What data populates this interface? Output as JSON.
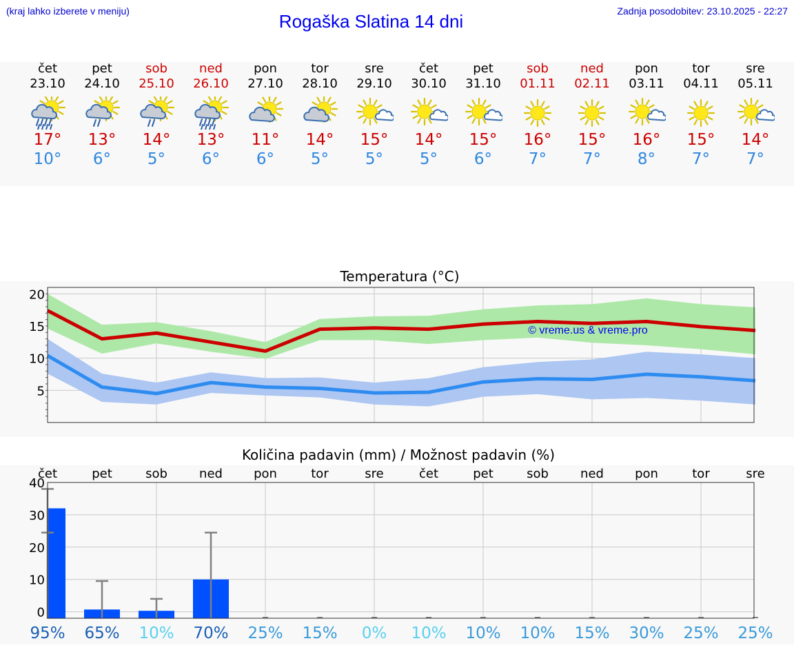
{
  "header": {
    "hint": "(kraj lahko izberete v meniju)",
    "title": "Rogaška Slatina 14 dni",
    "updated": "Zadnja posodobitev: 23.10.2025 - 22:27"
  },
  "colors": {
    "link": "#0000cc",
    "max_temp": "#cc0000",
    "min_temp": "#2e86e0",
    "max_band": "#aee8a8",
    "min_band": "#adc6f2",
    "bar": "#0050ff",
    "errbar": "#808080"
  },
  "forecast": [
    {
      "day": "čet",
      "date": "23.10",
      "weekend": false,
      "icon": "sun-cloud-rain-icon",
      "max": "17°",
      "min": "10°"
    },
    {
      "day": "pet",
      "date": "24.10",
      "weekend": false,
      "icon": "sun-cloud-light-rain-icon",
      "max": "13°",
      "min": "6°"
    },
    {
      "day": "sob",
      "date": "25.10",
      "weekend": true,
      "icon": "sun-cloud-light-rain-icon",
      "max": "14°",
      "min": "5°"
    },
    {
      "day": "ned",
      "date": "26.10",
      "weekend": true,
      "icon": "sun-cloud-rain-icon",
      "max": "13°",
      "min": "6°"
    },
    {
      "day": "pon",
      "date": "27.10",
      "weekend": false,
      "icon": "sun-cloud-icon",
      "max": "11°",
      "min": "6°"
    },
    {
      "day": "tor",
      "date": "28.10",
      "weekend": false,
      "icon": "sun-cloud-icon",
      "max": "14°",
      "min": "5°"
    },
    {
      "day": "sre",
      "date": "29.10",
      "weekend": false,
      "icon": "sun-small-cloud-icon",
      "max": "15°",
      "min": "5°"
    },
    {
      "day": "čet",
      "date": "30.10",
      "weekend": false,
      "icon": "sun-small-cloud-icon",
      "max": "14°",
      "min": "5°"
    },
    {
      "day": "pet",
      "date": "31.10",
      "weekend": false,
      "icon": "sun-small-cloud-icon",
      "max": "15°",
      "min": "6°"
    },
    {
      "day": "sob",
      "date": "01.11",
      "weekend": true,
      "icon": "sun-icon",
      "max": "16°",
      "min": "7°"
    },
    {
      "day": "ned",
      "date": "02.11",
      "weekend": true,
      "icon": "sun-icon",
      "max": "15°",
      "min": "7°"
    },
    {
      "day": "pon",
      "date": "03.11",
      "weekend": false,
      "icon": "sun-small-cloud-icon",
      "max": "16°",
      "min": "8°"
    },
    {
      "day": "tor",
      "date": "04.11",
      "weekend": false,
      "icon": "sun-icon",
      "max": "15°",
      "min": "7°"
    },
    {
      "day": "sre",
      "date": "05.11",
      "weekend": false,
      "icon": "sun-small-cloud-icon",
      "max": "14°",
      "min": "7°"
    }
  ],
  "chart_data": [
    {
      "type": "line",
      "title": "Temperatura (°C)",
      "xlabel": "",
      "ylabel": "",
      "ylim": [
        0,
        21
      ],
      "yticks": [
        5,
        10,
        15,
        20
      ],
      "grid": true,
      "watermark": "© vreme.us & vreme.pro",
      "x": [
        "23.10",
        "24.10",
        "25.10",
        "26.10",
        "27.10",
        "28.10",
        "29.10",
        "30.10",
        "31.10",
        "01.11",
        "02.11",
        "03.11",
        "04.11",
        "05.11"
      ],
      "series": [
        {
          "role": "max",
          "values": [
            17.4,
            13.0,
            13.9,
            12.5,
            11.1,
            14.5,
            14.7,
            14.5,
            15.3,
            15.7,
            15.4,
            15.7,
            14.9,
            14.3
          ],
          "low": [
            14.6,
            10.7,
            12.3,
            11.0,
            9.9,
            12.8,
            12.8,
            12.2,
            12.8,
            13.2,
            12.4,
            12.0,
            11.4,
            10.6
          ],
          "high": [
            20.0,
            15.2,
            15.6,
            14.2,
            12.5,
            16.1,
            16.5,
            16.6,
            17.6,
            18.2,
            18.4,
            19.3,
            18.4,
            17.9
          ]
        },
        {
          "role": "min",
          "values": [
            10.4,
            5.5,
            4.5,
            6.2,
            5.5,
            5.3,
            4.6,
            4.7,
            6.3,
            6.8,
            6.7,
            7.5,
            7.1,
            6.5
          ],
          "low": [
            7.6,
            3.2,
            2.8,
            4.6,
            4.2,
            3.9,
            2.8,
            2.5,
            4.0,
            4.4,
            3.6,
            3.8,
            3.4,
            2.8
          ],
          "high": [
            13.0,
            7.6,
            6.2,
            7.8,
            6.9,
            7.0,
            6.2,
            6.9,
            8.6,
            9.4,
            9.8,
            11.0,
            10.6,
            10.0
          ]
        }
      ]
    },
    {
      "type": "bar",
      "title": "Količina padavin (mm) / Možnost padavin (%)",
      "xlabel": "",
      "ylabel": "",
      "ylim": [
        -2,
        40
      ],
      "yticks": [
        0,
        10,
        20,
        30,
        40
      ],
      "grid": true,
      "categories": [
        "čet",
        "pet",
        "sob",
        "ned",
        "pon",
        "tor",
        "sre",
        "čet",
        "pet",
        "sob",
        "ned",
        "pon",
        "tor",
        "sre"
      ],
      "values": [
        32,
        0.7,
        0.3,
        10,
        0,
        0,
        0,
        0,
        0,
        0,
        0,
        0,
        0,
        0
      ],
      "error_high": [
        38,
        9.5,
        4,
        24.5,
        0,
        0,
        0,
        0,
        0,
        0,
        0,
        0,
        0,
        0
      ],
      "error_low": [
        24.5,
        0,
        0,
        0,
        0,
        0,
        0,
        0,
        0,
        0,
        0,
        0,
        0,
        0
      ],
      "probability": [
        "95%",
        "65%",
        "10%",
        "70%",
        "25%",
        "15%",
        "0%",
        "10%",
        "10%",
        "10%",
        "15%",
        "30%",
        "25%",
        "25%"
      ],
      "probability_colors": [
        "#1a5fb4",
        "#1a5fb4",
        "#5ad0ee",
        "#1a5fb4",
        "#3a9ad9",
        "#3a9ad9",
        "#5ad0ee",
        "#5ad0ee",
        "#3a9ad9",
        "#3a9ad9",
        "#3a9ad9",
        "#3a9ad9",
        "#3a9ad9",
        "#3a9ad9"
      ]
    }
  ]
}
